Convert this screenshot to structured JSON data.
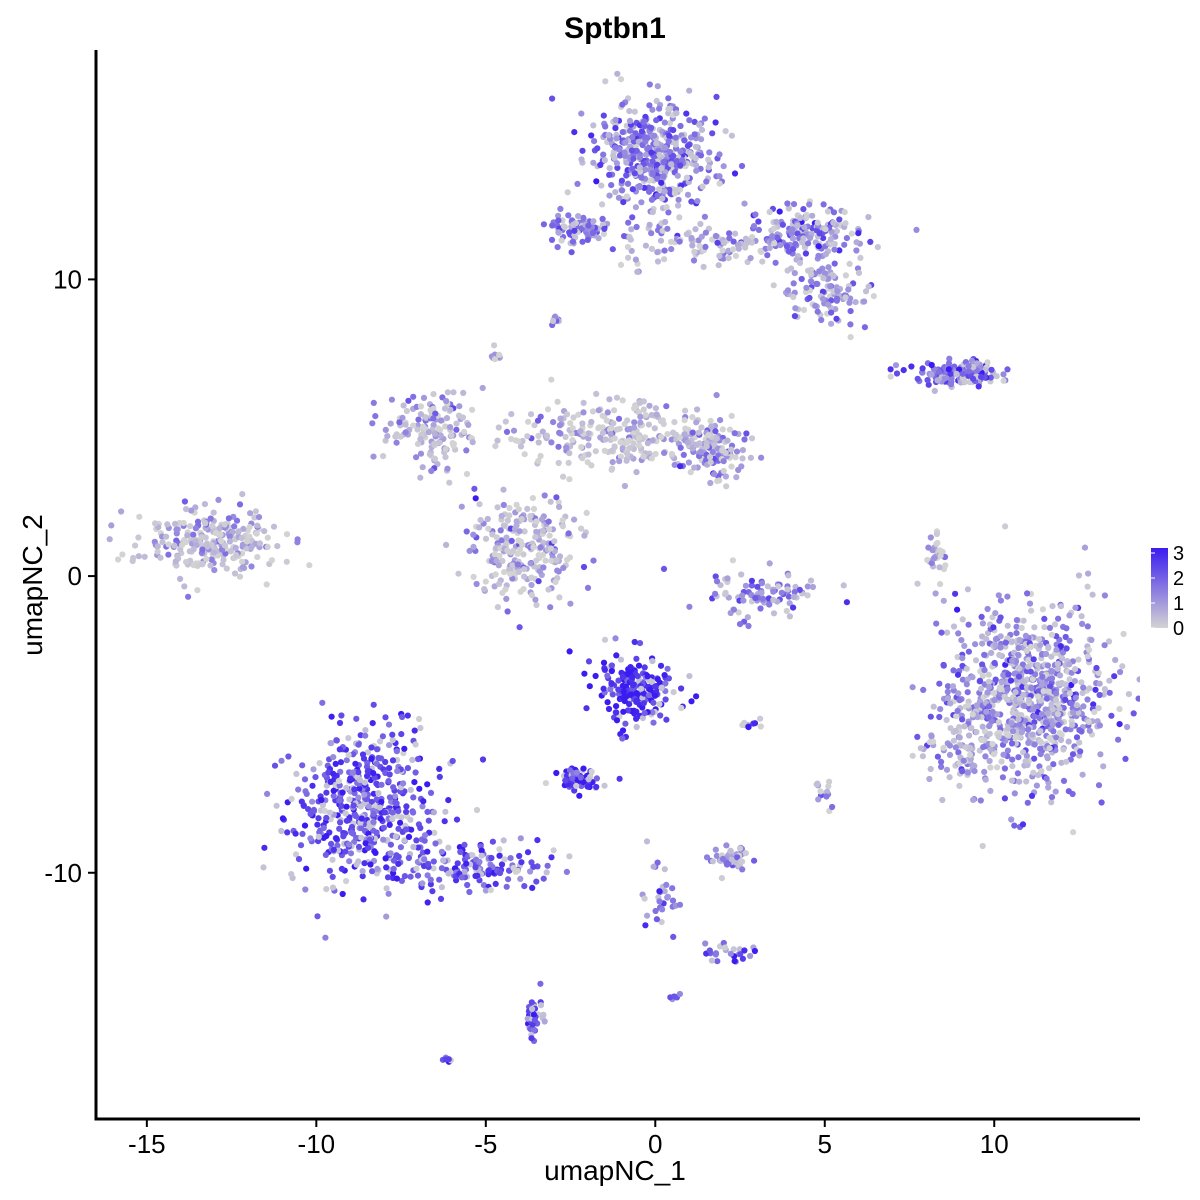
{
  "chart_data": {
    "type": "scatter",
    "title": "Sptbn1",
    "xlabel": "umapNC_1",
    "ylabel": "umapNC_2",
    "xlim": [
      -16.5,
      14.3
    ],
    "ylim": [
      -18.3,
      17.8
    ],
    "x_ticks": [
      -15,
      -10,
      -5,
      0,
      5,
      10
    ],
    "x_tick_labels": [
      "-15",
      "-10",
      "-5",
      "0",
      "5",
      "10"
    ],
    "y_ticks": [
      -10,
      0,
      10
    ],
    "y_tick_labels": [
      "-10",
      "0",
      "10"
    ],
    "grid": false,
    "legend": {
      "placement": "right",
      "type": "colorbar",
      "min": 0,
      "max": 3.2,
      "ticks": [
        0,
        1,
        2,
        3
      ],
      "tick_labels": [
        "0",
        "1",
        "2",
        "3"
      ],
      "low_color": "#d3d3d3",
      "high_color": "#3a1cf0"
    },
    "clusters": [
      {
        "name": "",
        "cx": -13.2,
        "cy": 1.1,
        "sx": 1.0,
        "sy": 0.6,
        "n": 260,
        "expr": 0.6
      },
      {
        "name": "",
        "cx": -8.6,
        "cy": -7.8,
        "sx": 1.0,
        "sy": 1.3,
        "n": 520,
        "expr": 2.3
      },
      {
        "name": "",
        "cx": -5.3,
        "cy": -9.8,
        "sx": 1.2,
        "sy": 0.4,
        "n": 150,
        "expr": 2.1
      },
      {
        "name": "",
        "cx": -0.5,
        "cy": -3.8,
        "sx": 0.6,
        "sy": 0.6,
        "n": 200,
        "expr": 2.9
      },
      {
        "name": "",
        "cx": -2.3,
        "cy": -6.9,
        "sx": 0.35,
        "sy": 0.2,
        "n": 70,
        "expr": 3.0
      },
      {
        "name": "",
        "cx": 11.0,
        "cy": -4.0,
        "sx": 1.2,
        "sy": 1.5,
        "n": 820,
        "expr": 1.3
      },
      {
        "name": "",
        "cx": 9.0,
        "cy": -5.5,
        "sx": 0.6,
        "sy": 0.8,
        "n": 90,
        "expr": 0.9
      },
      {
        "name": "",
        "cx": 0.0,
        "cy": 14.2,
        "sx": 0.9,
        "sy": 0.9,
        "n": 480,
        "expr": 1.6
      },
      {
        "name": "",
        "cx": 4.5,
        "cy": 11.5,
        "sx": 0.9,
        "sy": 0.5,
        "n": 160,
        "expr": 1.5
      },
      {
        "name": "",
        "cx": 5.1,
        "cy": 9.6,
        "sx": 0.6,
        "sy": 0.5,
        "n": 110,
        "expr": 1.1
      },
      {
        "name": "",
        "cx": -2.3,
        "cy": 11.8,
        "sx": 0.5,
        "sy": 0.3,
        "n": 90,
        "expr": 1.5
      },
      {
        "name": "",
        "cx": 1.5,
        "cy": 11.2,
        "sx": 1.5,
        "sy": 0.4,
        "n": 110,
        "expr": 1.0
      },
      {
        "name": "",
        "cx": -3.9,
        "cy": 0.9,
        "sx": 0.8,
        "sy": 0.9,
        "n": 260,
        "expr": 0.7
      },
      {
        "name": "",
        "cx": -6.6,
        "cy": 5.0,
        "sx": 0.8,
        "sy": 0.6,
        "n": 150,
        "expr": 0.8
      },
      {
        "name": "",
        "cx": -1.2,
        "cy": 4.8,
        "sx": 1.5,
        "sy": 0.6,
        "n": 260,
        "expr": 0.5
      },
      {
        "name": "",
        "cx": 1.7,
        "cy": 4.2,
        "sx": 0.5,
        "sy": 0.5,
        "n": 130,
        "expr": 1.0
      },
      {
        "name": "",
        "cx": 3.3,
        "cy": -0.6,
        "sx": 0.9,
        "sy": 0.4,
        "n": 90,
        "expr": 1.5
      },
      {
        "name": "",
        "cx": 8.8,
        "cy": 6.8,
        "sx": 0.7,
        "sy": 0.2,
        "n": 110,
        "expr": 1.5
      },
      {
        "name": "",
        "cx": 9.5,
        "cy": 6.9,
        "sx": 0.25,
        "sy": 0.2,
        "n": 50,
        "expr": 2.3
      },
      {
        "name": "",
        "cx": 8.3,
        "cy": 0.6,
        "sx": 0.15,
        "sy": 0.4,
        "n": 30,
        "expr": 0.3
      },
      {
        "name": "",
        "cx": 2.3,
        "cy": -9.5,
        "sx": 0.3,
        "sy": 0.2,
        "n": 50,
        "expr": 1.1
      },
      {
        "name": "",
        "cx": 2.2,
        "cy": -12.7,
        "sx": 0.35,
        "sy": 0.15,
        "n": 25,
        "expr": 1.8
      },
      {
        "name": "",
        "cx": -3.6,
        "cy": -14.9,
        "sx": 0.15,
        "sy": 0.35,
        "n": 40,
        "expr": 2.3
      },
      {
        "name": "",
        "cx": 0.2,
        "cy": -10.6,
        "sx": 0.3,
        "sy": 0.7,
        "n": 30,
        "expr": 1.6
      },
      {
        "name": "",
        "cx": 5.0,
        "cy": -7.3,
        "sx": 0.12,
        "sy": 0.2,
        "n": 15,
        "expr": 1.0
      },
      {
        "name": "",
        "cx": -6.1,
        "cy": -16.3,
        "sx": 0.08,
        "sy": 0.05,
        "n": 6,
        "expr": 2.4
      },
      {
        "name": "",
        "cx": 0.6,
        "cy": -14.2,
        "sx": 0.08,
        "sy": 0.05,
        "n": 6,
        "expr": 2.2
      },
      {
        "name": "",
        "cx": 2.8,
        "cy": -5.0,
        "sx": 0.2,
        "sy": 0.08,
        "n": 10,
        "expr": 2.5
      },
      {
        "name": "",
        "cx": -3.0,
        "cy": 8.7,
        "sx": 0.12,
        "sy": 0.08,
        "n": 10,
        "expr": 1.2
      },
      {
        "name": "",
        "cx": -4.7,
        "cy": 7.4,
        "sx": 0.1,
        "sy": 0.1,
        "n": 10,
        "expr": 0.8
      }
    ]
  }
}
